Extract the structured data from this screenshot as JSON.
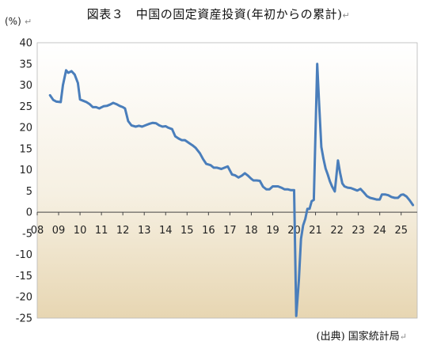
{
  "title": "図表３　中国の固定資産投資(年初からの累計)",
  "source": "(出典) 国家統計局",
  "paragraph_mark": "↵",
  "chart_data": {
    "type": "line",
    "title": "図表３　中国の固定資産投資(年初からの累計)",
    "unit_label": "(%)",
    "xlabel": "",
    "ylabel": "",
    "xlim": [
      2008,
      2025.75
    ],
    "ylim": [
      -25,
      40
    ],
    "yticks": [
      40,
      35,
      30,
      25,
      20,
      15,
      10,
      5,
      0,
      -5,
      -10,
      -15,
      -20,
      -25
    ],
    "xtick_labels": [
      "08",
      "09",
      "10",
      "11",
      "12",
      "13",
      "14",
      "15",
      "16",
      "17",
      "18",
      "19",
      "20",
      "21",
      "22",
      "23",
      "24",
      "25"
    ],
    "xtick_values": [
      2008,
      2009,
      2010,
      2011,
      2012,
      2013,
      2014,
      2015,
      2016,
      2017,
      2018,
      2019,
      2020,
      2021,
      2022,
      2023,
      2024,
      2025
    ],
    "grid": false,
    "background": "gradient cream to tan",
    "line_color": "#4a7ebb",
    "series": [
      {
        "name": "",
        "x": [
          2008.6,
          2008.75,
          2008.9,
          2009.1,
          2009.2,
          2009.35,
          2009.45,
          2009.6,
          2009.75,
          2009.9,
          2010.0,
          2010.1,
          2010.3,
          2010.45,
          2010.6,
          2010.75,
          2010.9,
          2011.1,
          2011.25,
          2011.4,
          2011.55,
          2011.7,
          2011.85,
          2012.0,
          2012.1,
          2012.25,
          2012.4,
          2012.6,
          2012.75,
          2012.9,
          2013.1,
          2013.25,
          2013.4,
          2013.55,
          2013.7,
          2013.85,
          2014.0,
          2014.1,
          2014.3,
          2014.45,
          2014.6,
          2014.75,
          2014.9,
          2015.1,
          2015.25,
          2015.4,
          2015.6,
          2015.75,
          2015.9,
          2016.1,
          2016.25,
          2016.4,
          2016.6,
          2016.75,
          2016.9,
          2017.1,
          2017.25,
          2017.4,
          2017.55,
          2017.7,
          2017.85,
          2018.0,
          2018.1,
          2018.25,
          2018.4,
          2018.55,
          2018.7,
          2018.85,
          2019.0,
          2019.1,
          2019.25,
          2019.4,
          2019.55,
          2019.7,
          2019.85,
          2020.0,
          2020.1,
          2020.22,
          2020.32,
          2020.42,
          2020.52,
          2020.62,
          2020.72,
          2020.82,
          2020.92,
          2021.08,
          2021.17,
          2021.27,
          2021.37,
          2021.47,
          2021.57,
          2021.67,
          2021.77,
          2021.9,
          2022.05,
          2022.15,
          2022.25,
          2022.35,
          2022.5,
          2022.65,
          2022.8,
          2022.95,
          2023.1,
          2023.25,
          2023.4,
          2023.55,
          2023.7,
          2023.85,
          2024.0,
          2024.1,
          2024.25,
          2024.4,
          2024.55,
          2024.7,
          2024.85,
          2025.0,
          2025.1,
          2025.25,
          2025.4,
          2025.55
        ],
        "y": [
          27.6,
          26.5,
          26.1,
          26.0,
          30.0,
          33.5,
          32.9,
          33.3,
          32.5,
          30.5,
          26.6,
          26.4,
          26.0,
          25.5,
          24.8,
          24.8,
          24.5,
          25.0,
          25.1,
          25.4,
          25.8,
          25.5,
          25.1,
          24.8,
          24.5,
          21.5,
          20.5,
          20.2,
          20.4,
          20.2,
          20.6,
          20.9,
          21.1,
          21.0,
          20.5,
          20.2,
          20.3,
          20.0,
          19.6,
          17.9,
          17.4,
          17.0,
          17.0,
          16.3,
          15.8,
          15.2,
          13.9,
          12.5,
          11.4,
          11.1,
          10.5,
          10.5,
          10.2,
          10.5,
          10.8,
          8.9,
          8.7,
          8.2,
          8.6,
          9.2,
          8.6,
          7.9,
          7.5,
          7.5,
          7.4,
          6.0,
          5.4,
          5.4,
          6.1,
          6.1,
          6.1,
          5.8,
          5.4,
          5.4,
          5.2,
          5.2,
          -24.5,
          -16.1,
          -6.3,
          -3.1,
          -1.6,
          0.8,
          0.8,
          2.6,
          2.9,
          35.0,
          25.6,
          15.4,
          12.6,
          10.3,
          8.9,
          7.3,
          6.1,
          4.9,
          12.2,
          9.3,
          6.8,
          6.1,
          5.8,
          5.7,
          5.4,
          5.1,
          5.5,
          4.7,
          3.8,
          3.4,
          3.2,
          3.0,
          3.0,
          4.2,
          4.2,
          4.0,
          3.6,
          3.4,
          3.4,
          4.1,
          4.2,
          3.7,
          2.8,
          1.7
        ]
      }
    ]
  }
}
